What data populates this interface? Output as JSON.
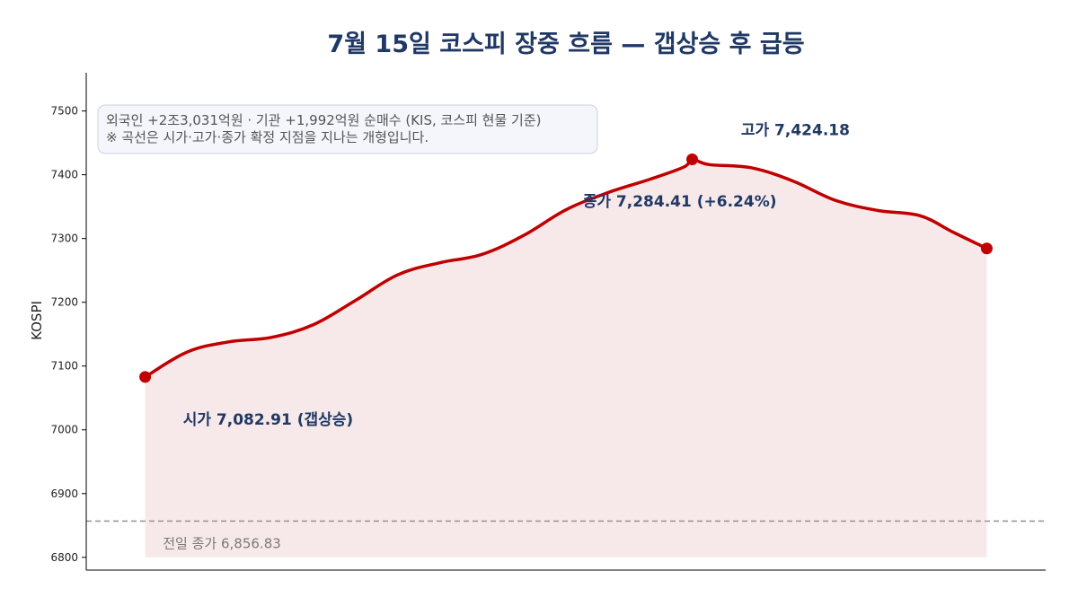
{
  "chart_data": {
    "type": "line",
    "title": "7월 15일 코스피 장중 흐름 — 갭상승 후 급등",
    "ylabel": "KOSPI",
    "xlabel": "",
    "ylim": [
      6780,
      7560
    ],
    "xlim": [
      -0.07,
      1.07
    ],
    "yticks": [
      6800,
      6900,
      7000,
      7100,
      7200,
      7300,
      7400,
      7500
    ],
    "grid": false,
    "series": [
      {
        "values": [
          [
            0.0,
            7082.91
          ],
          [
            0.05,
            7122
          ],
          [
            0.1,
            7138
          ],
          [
            0.15,
            7145
          ],
          [
            0.2,
            7165
          ],
          [
            0.25,
            7203
          ],
          [
            0.3,
            7243
          ],
          [
            0.35,
            7262
          ],
          [
            0.4,
            7275
          ],
          [
            0.45,
            7305
          ],
          [
            0.5,
            7345
          ],
          [
            0.55,
            7372
          ],
          [
            0.6,
            7393
          ],
          [
            0.64,
            7412
          ],
          [
            0.65,
            7424.18
          ],
          [
            0.67,
            7416
          ],
          [
            0.72,
            7411
          ],
          [
            0.77,
            7390
          ],
          [
            0.82,
            7360
          ],
          [
            0.87,
            7344
          ],
          [
            0.92,
            7336
          ],
          [
            0.96,
            7310
          ],
          [
            1.0,
            7284.41
          ]
        ]
      }
    ],
    "markers": [
      {
        "x": 0.0,
        "y": 7082.91
      },
      {
        "x": 0.65,
        "y": 7424.18
      },
      {
        "x": 1.0,
        "y": 7284.41
      }
    ],
    "fill_base": 6800,
    "reference_line": {
      "y": 6856.83,
      "label": "전일 종가 6,856.83"
    },
    "annotations": [
      {
        "text": "시가 7,082.91 (갭상승)",
        "x": 0.045,
        "y": 7008
      },
      {
        "text": "고가 7,424.18",
        "x": 1.04,
        "y": 7462,
        "px_note": ""
      },
      {
        "text": "종가 7,284.41 (+6.24%)",
        "x": 0.52,
        "y": 7350
      }
    ],
    "note": {
      "lines": [
        "외국인 +2조3,031억원 · 기관 +1,992억원 순매수 (KIS, 코스피 현물 기준)",
        "※ 곡선은 시가·고가·종가 확정 지점을 지나는 개형입니다."
      ],
      "placement": "top-left"
    },
    "colors": {
      "line": "#c00000",
      "fill": "#f7e9e9",
      "reference": "#999999",
      "title": "#1f3864",
      "annotation": "#1f3864"
    }
  }
}
